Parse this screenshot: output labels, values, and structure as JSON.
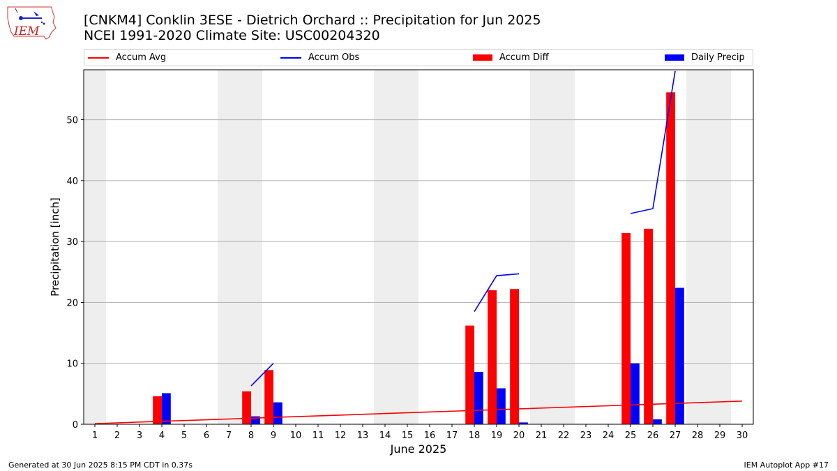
{
  "header": {
    "title_line1": "[CNKM4] Conklin 3ESE - Dietrich Orchard :: Precipitation for Jun 2025",
    "title_line2": "NCEI 1991-2020 Climate Site: USC00204320",
    "logo_text": "IEM"
  },
  "footer": {
    "generated": "Generated at 30 Jun 2025 8:15 PM CDT in 0.37s",
    "app": "IEM Autoplot App #17"
  },
  "colors": {
    "accum_avg": "#ff0000",
    "accum_obs": "#0000ff",
    "accum_diff": "#ff0000",
    "daily_precip": "#0000ff",
    "weekend_band": "#eeeeee",
    "grid": "#b0b0b0"
  },
  "chart_data": {
    "type": "bar",
    "title": "[CNKM4] Conklin 3ESE - Dietrich Orchard :: Precipitation for Jun 2025",
    "xlabel": "June 2025",
    "ylabel": "Precipitation [inch]",
    "xlim": [
      0.5,
      30.5
    ],
    "ylim": [
      0,
      58.2
    ],
    "yticks": [
      0,
      10,
      20,
      30,
      40,
      50
    ],
    "xticks": [
      1,
      2,
      3,
      4,
      5,
      6,
      7,
      8,
      9,
      10,
      11,
      12,
      13,
      14,
      15,
      16,
      17,
      18,
      19,
      20,
      21,
      22,
      23,
      24,
      25,
      26,
      27,
      28,
      29,
      30
    ],
    "grid": "horizontal",
    "legend_placement": "top",
    "weekend_days": [
      1,
      7,
      8,
      14,
      15,
      21,
      22,
      28,
      29
    ],
    "series": [
      {
        "name": "Accum Avg",
        "kind": "line",
        "x": [
          1,
          30
        ],
        "y": [
          0.1,
          3.8
        ]
      },
      {
        "name": "Accum Obs",
        "kind": "line",
        "segments": [
          {
            "x": [
              8,
              9
            ],
            "y": [
              6.3,
              10.0
            ]
          },
          {
            "x": [
              18,
              19,
              20
            ],
            "y": [
              18.5,
              24.4,
              24.7
            ]
          },
          {
            "x": [
              25,
              26,
              27
            ],
            "y": [
              34.6,
              35.4,
              58.0
            ]
          }
        ]
      },
      {
        "name": "Accum Diff",
        "kind": "bar",
        "x": [
          4,
          8,
          9,
          18,
          19,
          20,
          25,
          26,
          27
        ],
        "y": [
          4.6,
          5.4,
          8.9,
          16.2,
          22.0,
          22.2,
          31.4,
          32.1,
          54.5
        ]
      },
      {
        "name": "Daily Precip",
        "kind": "bar",
        "x": [
          4,
          8,
          9,
          18,
          19,
          20,
          25,
          26,
          27
        ],
        "y": [
          5.1,
          1.3,
          3.6,
          8.6,
          5.9,
          0.3,
          10.0,
          0.8,
          22.4
        ]
      }
    ]
  }
}
